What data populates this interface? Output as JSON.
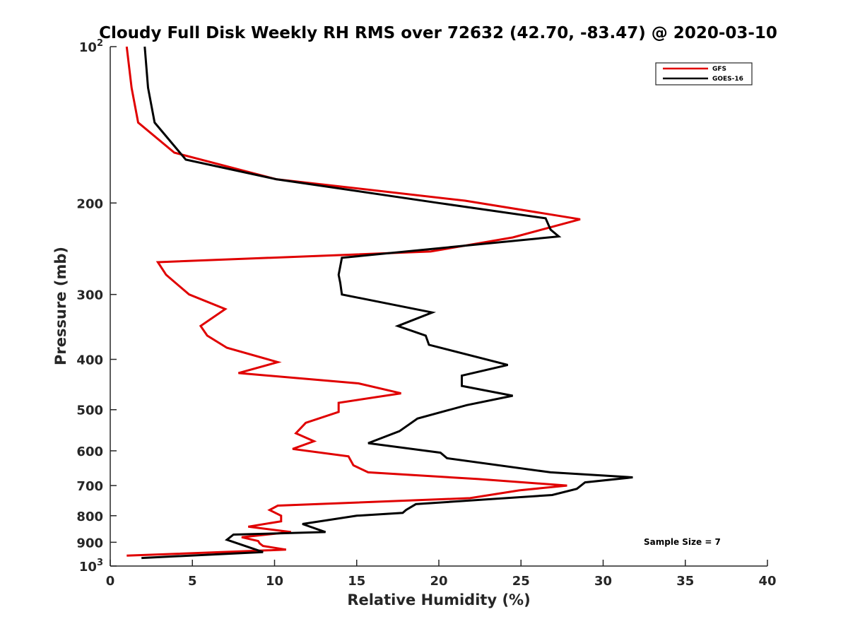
{
  "chart_data": {
    "type": "line",
    "title": "Cloudy Full Disk Weekly RH RMS over 72632 (42.70, -83.47) @ 2020-03-10",
    "xlabel": "Relative Humidity (%)",
    "ylabel": "Pressure (mb)",
    "xlim": [
      0,
      40
    ],
    "ylim": [
      100,
      1000
    ],
    "y_scale": "log",
    "y_reversed": true,
    "grid": false,
    "legend_position": "top-right",
    "x_ticks": [
      "0",
      "5",
      "10",
      "15",
      "20",
      "25",
      "30",
      "35",
      "40"
    ],
    "y_ticks": [
      {
        "value": 100,
        "base": "10",
        "exp": "2"
      },
      {
        "value": 200,
        "label": "200"
      },
      {
        "value": 300,
        "label": "300"
      },
      {
        "value": 400,
        "label": "400"
      },
      {
        "value": 500,
        "label": "500"
      },
      {
        "value": 600,
        "label": "600"
      },
      {
        "value": 700,
        "label": "700"
      },
      {
        "value": 800,
        "label": "800"
      },
      {
        "value": 900,
        "label": "900"
      },
      {
        "value": 1000,
        "base": "10",
        "exp": "3"
      }
    ],
    "annotation": "Sample Size = 7",
    "series": [
      {
        "name": "GFS",
        "color": "#e00000",
        "x": [
          1.0,
          1.3,
          1.7,
          3.9,
          10.1,
          21.6,
          28.6,
          24.5,
          19.5,
          2.9,
          3.4,
          4.8,
          7.0,
          5.5,
          5.9,
          7.1,
          10.2,
          7.8,
          15.1,
          17.7,
          13.9,
          13.9,
          11.9,
          11.3,
          12.4,
          11.1,
          14.5,
          14.8,
          15.7,
          22.4,
          27.8,
          24.9,
          21.9,
          10.2,
          9.7,
          10.4,
          10.4,
          8.4,
          11.0,
          8.0,
          9.0,
          9.1,
          9.3,
          10.7,
          1.0
        ],
        "y": [
          100,
          120,
          140,
          160,
          180,
          198,
          215,
          233,
          248,
          260,
          275,
          300,
          320,
          345,
          360,
          380,
          405,
          425,
          445,
          465,
          485,
          505,
          530,
          555,
          575,
          595,
          615,
          640,
          660,
          680,
          700,
          715,
          740,
          765,
          780,
          800,
          820,
          840,
          860,
          880,
          895,
          905,
          915,
          930,
          955
        ]
      },
      {
        "name": "GOES-16",
        "color": "#000000",
        "x": [
          2.1,
          2.3,
          2.7,
          4.6,
          10.1,
          20.0,
          26.5,
          26.8,
          27.3,
          14.1,
          13.9,
          14.0,
          14.1,
          19.6,
          17.5,
          19.2,
          19.4,
          24.2,
          21.4,
          21.4,
          24.5,
          21.7,
          18.7,
          17.6,
          15.7,
          20.1,
          20.5,
          26.8,
          31.8,
          28.9,
          28.4,
          26.9,
          18.6,
          18.0,
          17.8,
          15.0,
          11.7,
          13.1,
          7.5,
          7.1,
          8.0,
          9.3,
          1.9
        ],
        "y": [
          100,
          120,
          140,
          165,
          180,
          200,
          214,
          225,
          232,
          255,
          275,
          285,
          300,
          325,
          345,
          360,
          375,
          410,
          430,
          450,
          470,
          490,
          520,
          550,
          580,
          605,
          620,
          660,
          675,
          690,
          710,
          730,
          760,
          780,
          790,
          800,
          830,
          860,
          870,
          890,
          910,
          940,
          965
        ]
      }
    ]
  }
}
